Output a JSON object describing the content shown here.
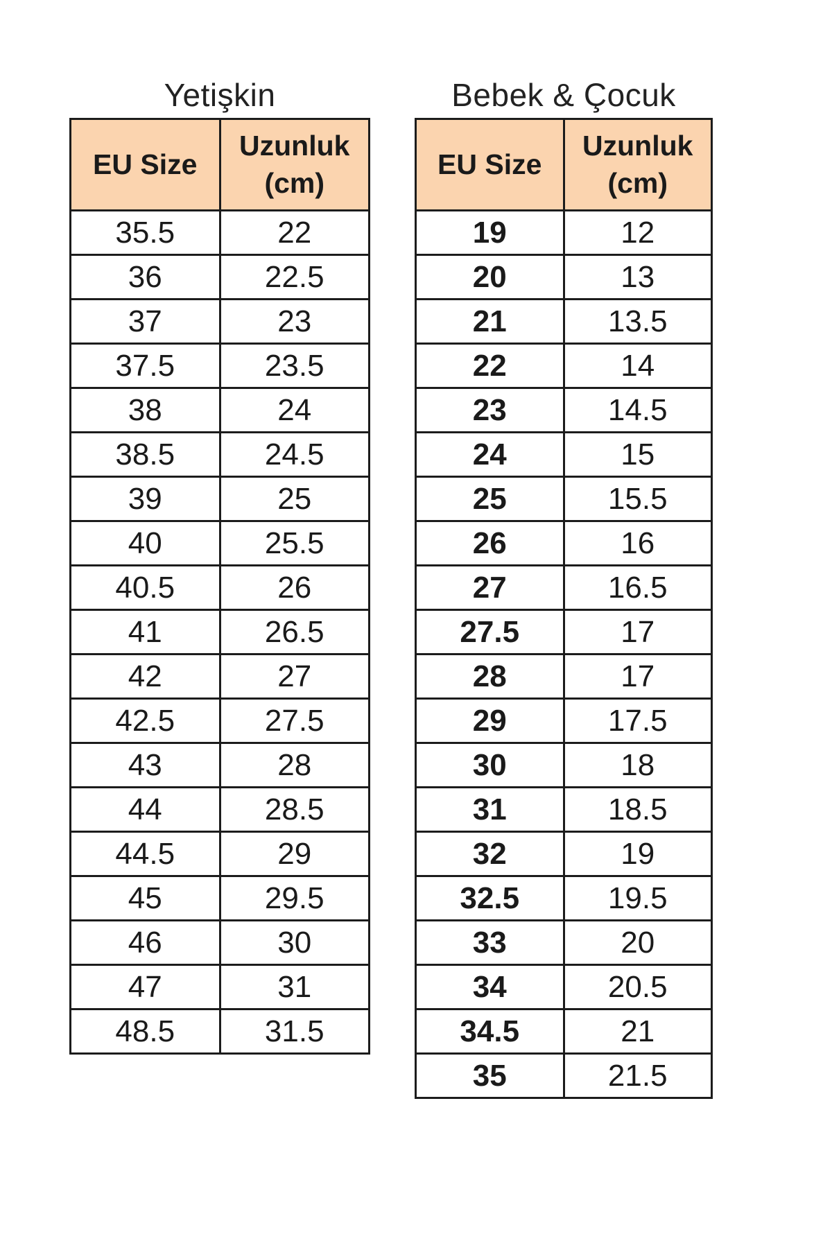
{
  "colors": {
    "header_fill": "#FBD4AF",
    "border": "#1c1c1c",
    "text": "#1a1a1a",
    "background": "#ffffff"
  },
  "tables": [
    {
      "title": "Yetişkin",
      "columns": [
        {
          "label": "EU Size",
          "unit": ""
        },
        {
          "label": "Uzunluk",
          "unit": "(cm)"
        }
      ],
      "rows": [
        [
          "35.5",
          "22"
        ],
        [
          "36",
          "22.5"
        ],
        [
          "37",
          "23"
        ],
        [
          "37.5",
          "23.5"
        ],
        [
          "38",
          "24"
        ],
        [
          "38.5",
          "24.5"
        ],
        [
          "39",
          "25"
        ],
        [
          "40",
          "25.5"
        ],
        [
          "40.5",
          "26"
        ],
        [
          "41",
          "26.5"
        ],
        [
          "42",
          "27"
        ],
        [
          "42.5",
          "27.5"
        ],
        [
          "43",
          "28"
        ],
        [
          "44",
          "28.5"
        ],
        [
          "44.5",
          "29"
        ],
        [
          "45",
          "29.5"
        ],
        [
          "46",
          "30"
        ],
        [
          "47",
          "31"
        ],
        [
          "48.5",
          "31.5"
        ]
      ]
    },
    {
      "title": "Bebek & Çocuk",
      "columns": [
        {
          "label": "EU Size",
          "unit": ""
        },
        {
          "label": "Uzunluk",
          "unit": "(cm)"
        }
      ],
      "rows": [
        [
          "19",
          "12"
        ],
        [
          "20",
          "13"
        ],
        [
          "21",
          "13.5"
        ],
        [
          "22",
          "14"
        ],
        [
          "23",
          "14.5"
        ],
        [
          "24",
          "15"
        ],
        [
          "25",
          "15.5"
        ],
        [
          "26",
          "16"
        ],
        [
          "27",
          "16.5"
        ],
        [
          "27.5",
          "17"
        ],
        [
          "28",
          "17"
        ],
        [
          "29",
          "17.5"
        ],
        [
          "30",
          "18"
        ],
        [
          "31",
          "18.5"
        ],
        [
          "32",
          "19"
        ],
        [
          "32.5",
          "19.5"
        ],
        [
          "33",
          "20"
        ],
        [
          "34",
          "20.5"
        ],
        [
          "34.5",
          "21"
        ],
        [
          "35",
          "21.5"
        ]
      ]
    }
  ]
}
